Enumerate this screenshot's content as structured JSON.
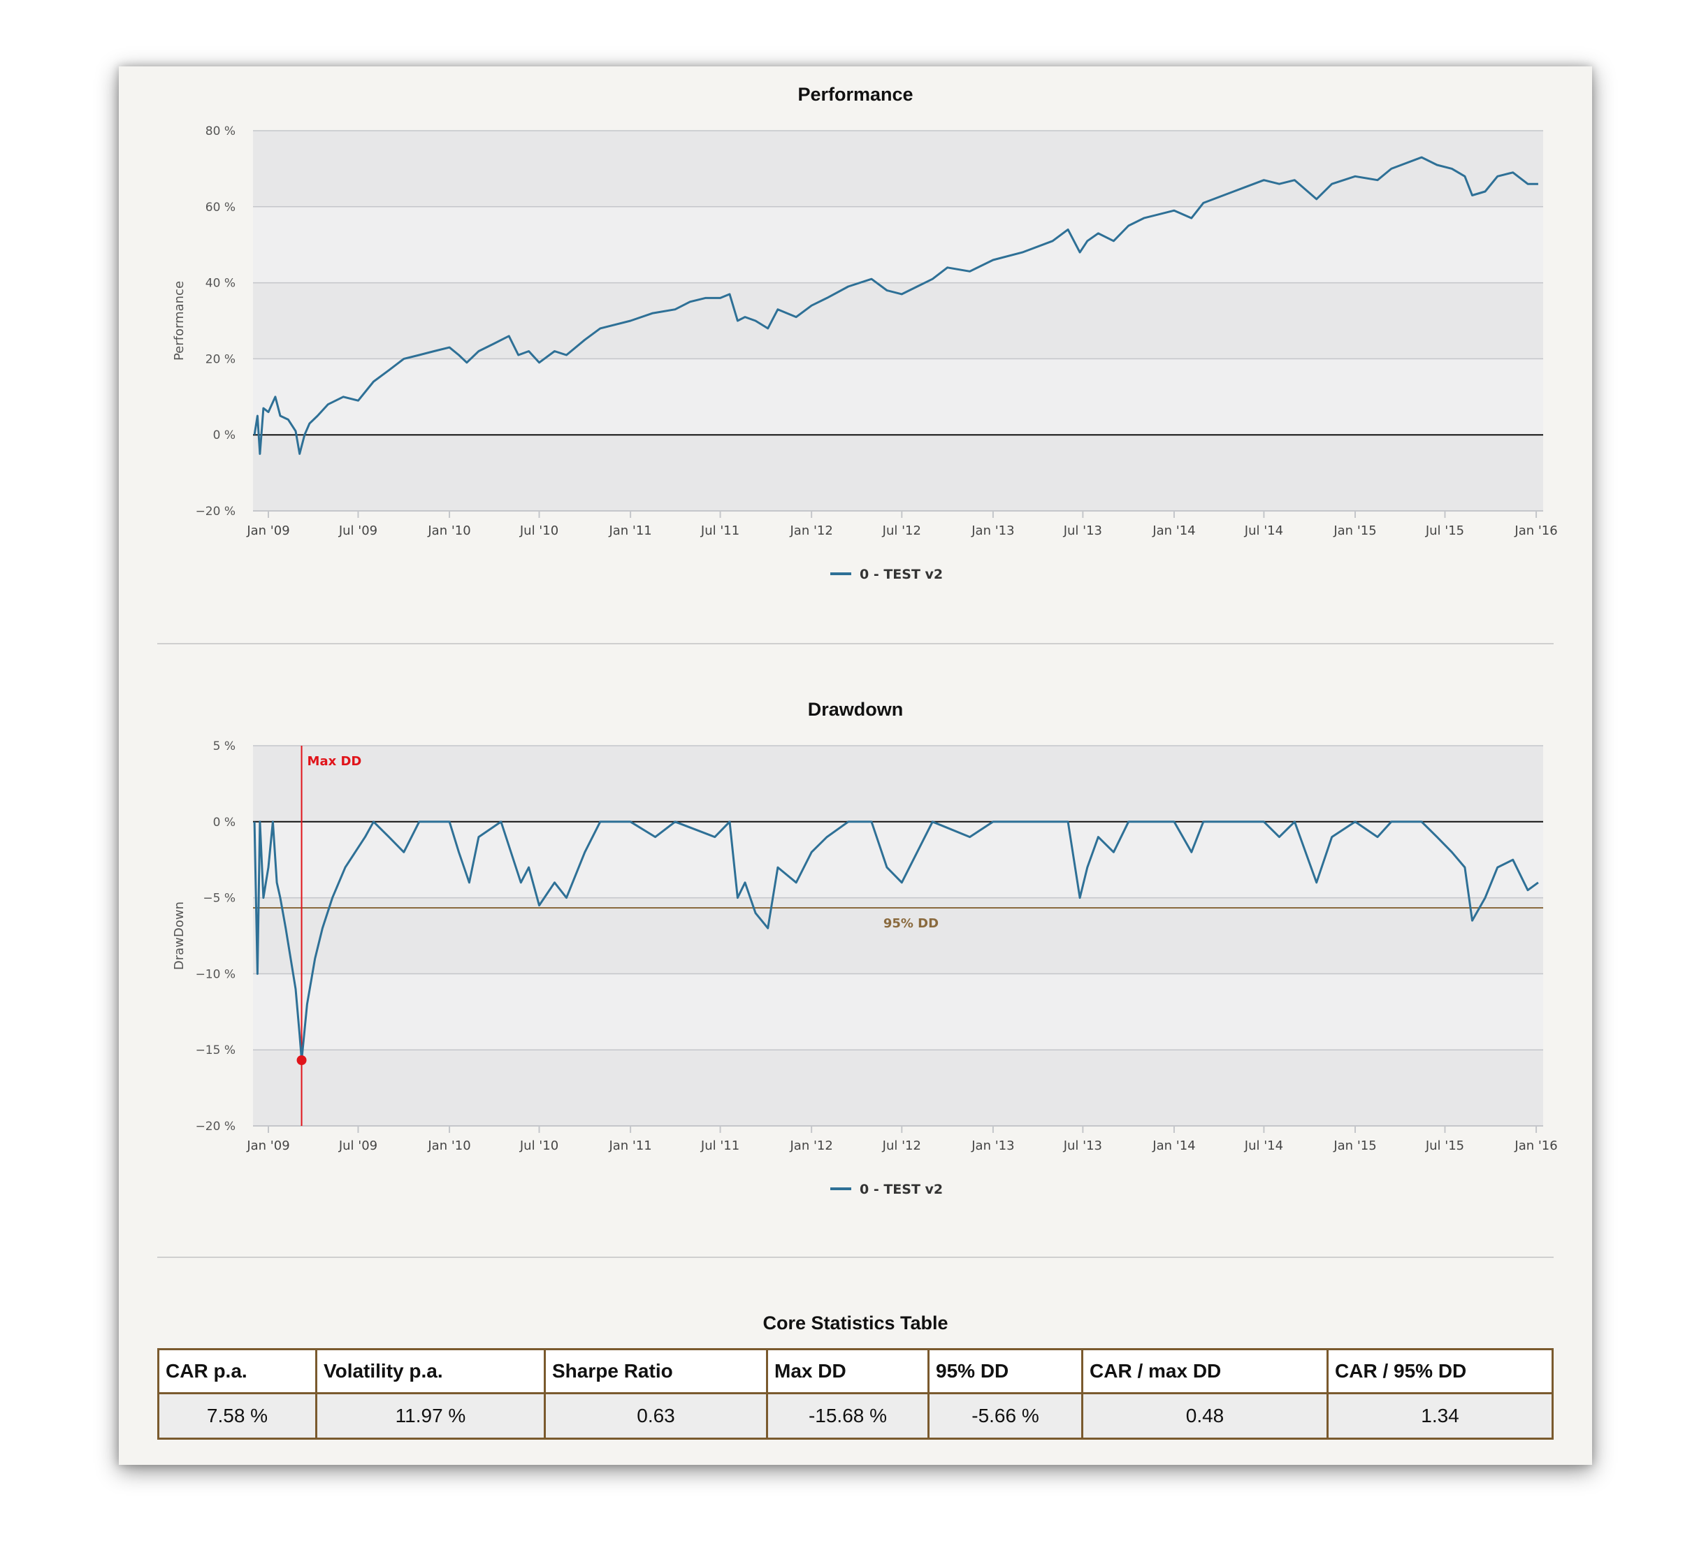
{
  "tables": {
    "title": "Core Statistics Table",
    "headers": [
      "CAR p.a.",
      "Volatility p.a.",
      "Sharpe Ratio",
      "Max DD",
      "95% DD",
      "CAR / max DD",
      "CAR / 95% DD"
    ],
    "values": [
      "7.58 %",
      "11.97 %",
      "0.63",
      "-15.68 %",
      "-5.66 %",
      "0.48",
      "1.34"
    ]
  },
  "chart_data": [
    {
      "type": "line",
      "title": "Performance",
      "ylabel": "Performance",
      "ylim": [
        -20,
        80
      ],
      "yticks": [
        80,
        60,
        40,
        20,
        0,
        -20
      ],
      "ytick_labels": [
        "80 %",
        "60 %",
        "40 %",
        "20 %",
        "0 %",
        "−20 %"
      ],
      "xlim": [
        "2008-12-01",
        "2016-01-15"
      ],
      "xticks": [
        "2009-01-01",
        "2009-07-01",
        "2010-01-01",
        "2010-07-01",
        "2011-01-01",
        "2011-07-01",
        "2012-01-01",
        "2012-07-01",
        "2013-01-01",
        "2013-07-01",
        "2014-01-01",
        "2014-07-01",
        "2015-01-01",
        "2015-07-01",
        "2016-01-01"
      ],
      "xtick_labels": [
        "Jan '09",
        "Jul '09",
        "Jan '10",
        "Jul '10",
        "Jan '11",
        "Jul '11",
        "Jan '12",
        "Jul '12",
        "Jan '13",
        "Jul '13",
        "Jan '14",
        "Jul '14",
        "Jan '15",
        "Jul '15",
        "Jan '16"
      ],
      "grid": true,
      "legend": "bottom-center",
      "colors": {
        "series": "#2e7096",
        "zero_line": "#111111"
      },
      "series": [
        {
          "name": "0 - TEST v2",
          "points": [
            [
              "2008-12-04",
              0
            ],
            [
              "2008-12-10",
              5
            ],
            [
              "2008-12-15",
              -5
            ],
            [
              "2008-12-22",
              7
            ],
            [
              "2009-01-01",
              6
            ],
            [
              "2009-01-15",
              10
            ],
            [
              "2009-01-25",
              5
            ],
            [
              "2009-02-10",
              4
            ],
            [
              "2009-02-25",
              1
            ],
            [
              "2009-03-05",
              -5
            ],
            [
              "2009-03-15",
              0
            ],
            [
              "2009-03-25",
              3
            ],
            [
              "2009-04-10",
              5
            ],
            [
              "2009-05-01",
              8
            ],
            [
              "2009-06-01",
              10
            ],
            [
              "2009-07-01",
              9
            ],
            [
              "2009-08-01",
              14
            ],
            [
              "2009-09-01",
              17
            ],
            [
              "2009-10-01",
              20
            ],
            [
              "2009-11-01",
              21
            ],
            [
              "2009-12-01",
              22
            ],
            [
              "2010-01-01",
              23
            ],
            [
              "2010-01-20",
              21
            ],
            [
              "2010-02-05",
              19
            ],
            [
              "2010-03-01",
              22
            ],
            [
              "2010-04-01",
              24
            ],
            [
              "2010-05-01",
              26
            ],
            [
              "2010-05-20",
              21
            ],
            [
              "2010-06-10",
              22
            ],
            [
              "2010-07-01",
              19
            ],
            [
              "2010-08-01",
              22
            ],
            [
              "2010-08-25",
              21
            ],
            [
              "2010-10-01",
              25
            ],
            [
              "2010-11-01",
              28
            ],
            [
              "2011-01-01",
              30
            ],
            [
              "2011-02-15",
              32
            ],
            [
              "2011-04-01",
              33
            ],
            [
              "2011-05-01",
              35
            ],
            [
              "2011-06-01",
              36
            ],
            [
              "2011-07-01",
              36
            ],
            [
              "2011-07-20",
              37
            ],
            [
              "2011-08-05",
              30
            ],
            [
              "2011-08-20",
              31
            ],
            [
              "2011-09-10",
              30
            ],
            [
              "2011-10-05",
              28
            ],
            [
              "2011-10-25",
              33
            ],
            [
              "2011-12-01",
              31
            ],
            [
              "2012-01-01",
              34
            ],
            [
              "2012-02-01",
              36
            ],
            [
              "2012-03-15",
              39
            ],
            [
              "2012-05-01",
              41
            ],
            [
              "2012-06-01",
              38
            ],
            [
              "2012-07-01",
              37
            ],
            [
              "2012-08-01",
              39
            ],
            [
              "2012-09-01",
              41
            ],
            [
              "2012-10-01",
              44
            ],
            [
              "2012-11-15",
              43
            ],
            [
              "2013-01-01",
              46
            ],
            [
              "2013-03-01",
              48
            ],
            [
              "2013-05-01",
              51
            ],
            [
              "2013-06-01",
              54
            ],
            [
              "2013-06-25",
              48
            ],
            [
              "2013-07-10",
              51
            ],
            [
              "2013-08-01",
              53
            ],
            [
              "2013-09-01",
              51
            ],
            [
              "2013-10-01",
              55
            ],
            [
              "2013-11-01",
              57
            ],
            [
              "2014-01-01",
              59
            ],
            [
              "2014-02-05",
              57
            ],
            [
              "2014-03-01",
              61
            ],
            [
              "2014-05-01",
              64
            ],
            [
              "2014-07-01",
              67
            ],
            [
              "2014-08-01",
              66
            ],
            [
              "2014-09-01",
              67
            ],
            [
              "2014-10-15",
              62
            ],
            [
              "2014-11-15",
              66
            ],
            [
              "2015-01-01",
              68
            ],
            [
              "2015-02-15",
              67
            ],
            [
              "2015-03-15",
              70
            ],
            [
              "2015-05-15",
              73
            ],
            [
              "2015-06-15",
              71
            ],
            [
              "2015-07-15",
              70
            ],
            [
              "2015-08-10",
              68
            ],
            [
              "2015-08-25",
              63
            ],
            [
              "2015-09-20",
              64
            ],
            [
              "2015-10-15",
              68
            ],
            [
              "2015-11-15",
              69
            ],
            [
              "2015-12-15",
              66
            ],
            [
              "2016-01-05",
              66
            ]
          ]
        }
      ]
    },
    {
      "type": "line",
      "title": "Drawdown",
      "ylabel": "DrawDown",
      "ylim": [
        -20,
        5
      ],
      "yticks": [
        5,
        0,
        -5,
        -10,
        -15,
        -20
      ],
      "ytick_labels": [
        "5 %",
        "0 %",
        "−5 %",
        "−10 %",
        "−15 %",
        "−20 %"
      ],
      "xlim": [
        "2008-12-01",
        "2016-01-15"
      ],
      "xticks": [
        "2009-01-01",
        "2009-07-01",
        "2010-01-01",
        "2010-07-01",
        "2011-01-01",
        "2011-07-01",
        "2012-01-01",
        "2012-07-01",
        "2013-01-01",
        "2013-07-01",
        "2014-01-01",
        "2014-07-01",
        "2015-01-01",
        "2015-07-01",
        "2016-01-01"
      ],
      "xtick_labels": [
        "Jan '09",
        "Jul '09",
        "Jan '10",
        "Jul '10",
        "Jan '11",
        "Jul '11",
        "Jan '12",
        "Jul '12",
        "Jan '13",
        "Jul '13",
        "Jan '14",
        "Jul '14",
        "Jan '15",
        "Jul '15",
        "Jan '16"
      ],
      "grid": true,
      "legend": "bottom-center",
      "colors": {
        "series": "#2e7096",
        "max_dd": "#e0141a",
        "dd95": "#8a6a3e",
        "zero_line": "#111111"
      },
      "annotations": {
        "max_dd": {
          "label": "Max DD",
          "date": "2009-03-09",
          "value": -15.68
        },
        "dd95": {
          "label": "95% DD",
          "value": -5.66
        }
      },
      "series": [
        {
          "name": "0 - TEST v2",
          "points": [
            [
              "2008-12-04",
              0
            ],
            [
              "2008-12-10",
              -10
            ],
            [
              "2008-12-15",
              0
            ],
            [
              "2008-12-22",
              -5
            ],
            [
              "2009-01-01",
              -3
            ],
            [
              "2009-01-10",
              0
            ],
            [
              "2009-01-18",
              -4
            ],
            [
              "2009-01-25",
              -5
            ],
            [
              "2009-02-05",
              -7
            ],
            [
              "2009-02-15",
              -9
            ],
            [
              "2009-02-25",
              -11
            ],
            [
              "2009-03-05",
              -14
            ],
            [
              "2009-03-09",
              -15.68
            ],
            [
              "2009-03-20",
              -12
            ],
            [
              "2009-04-05",
              -9
            ],
            [
              "2009-04-20",
              -7
            ],
            [
              "2009-05-10",
              -5
            ],
            [
              "2009-06-05",
              -3
            ],
            [
              "2009-06-25",
              -2
            ],
            [
              "2009-07-15",
              -1
            ],
            [
              "2009-08-01",
              0
            ],
            [
              "2009-09-01",
              -1
            ],
            [
              "2009-10-01",
              -2
            ],
            [
              "2009-11-01",
              0
            ],
            [
              "2009-12-01",
              0
            ],
            [
              "2010-01-01",
              0
            ],
            [
              "2010-01-20",
              -2
            ],
            [
              "2010-02-10",
              -4
            ],
            [
              "2010-03-01",
              -1
            ],
            [
              "2010-04-15",
              0
            ],
            [
              "2010-05-25",
              -4
            ],
            [
              "2010-06-10",
              -3
            ],
            [
              "2010-07-01",
              -5.5
            ],
            [
              "2010-08-01",
              -4
            ],
            [
              "2010-08-25",
              -5
            ],
            [
              "2010-10-01",
              -2
            ],
            [
              "2010-11-01",
              0
            ],
            [
              "2011-01-01",
              0
            ],
            [
              "2011-02-20",
              -1
            ],
            [
              "2011-04-01",
              0
            ],
            [
              "2011-06-20",
              -1
            ],
            [
              "2011-07-20",
              0
            ],
            [
              "2011-08-05",
              -5
            ],
            [
              "2011-08-20",
              -4
            ],
            [
              "2011-09-10",
              -6
            ],
            [
              "2011-10-05",
              -7
            ],
            [
              "2011-10-25",
              -3
            ],
            [
              "2011-12-01",
              -4
            ],
            [
              "2012-01-01",
              -2
            ],
            [
              "2012-02-01",
              -1
            ],
            [
              "2012-03-15",
              0
            ],
            [
              "2012-05-01",
              0
            ],
            [
              "2012-06-01",
              -3
            ],
            [
              "2012-07-01",
              -4
            ],
            [
              "2012-08-01",
              -2
            ],
            [
              "2012-09-01",
              0
            ],
            [
              "2012-11-15",
              -1
            ],
            [
              "2013-01-01",
              0
            ],
            [
              "2013-03-01",
              0
            ],
            [
              "2013-05-01",
              0
            ],
            [
              "2013-06-01",
              0
            ],
            [
              "2013-06-25",
              -5
            ],
            [
              "2013-07-10",
              -3
            ],
            [
              "2013-08-01",
              -1
            ],
            [
              "2013-09-01",
              -2
            ],
            [
              "2013-10-01",
              0
            ],
            [
              "2014-01-01",
              0
            ],
            [
              "2014-02-05",
              -2
            ],
            [
              "2014-03-01",
              0
            ],
            [
              "2014-07-01",
              0
            ],
            [
              "2014-08-01",
              -1
            ],
            [
              "2014-09-01",
              0
            ],
            [
              "2014-10-15",
              -4
            ],
            [
              "2014-11-15",
              -1
            ],
            [
              "2015-01-01",
              0
            ],
            [
              "2015-02-15",
              -1
            ],
            [
              "2015-03-15",
              0
            ],
            [
              "2015-05-15",
              0
            ],
            [
              "2015-06-15",
              -1
            ],
            [
              "2015-07-15",
              -2
            ],
            [
              "2015-08-10",
              -3
            ],
            [
              "2015-08-25",
              -6.5
            ],
            [
              "2015-09-20",
              -5
            ],
            [
              "2015-10-15",
              -3
            ],
            [
              "2015-11-15",
              -2.5
            ],
            [
              "2015-12-15",
              -4.5
            ],
            [
              "2016-01-05",
              -4
            ]
          ]
        }
      ]
    }
  ]
}
